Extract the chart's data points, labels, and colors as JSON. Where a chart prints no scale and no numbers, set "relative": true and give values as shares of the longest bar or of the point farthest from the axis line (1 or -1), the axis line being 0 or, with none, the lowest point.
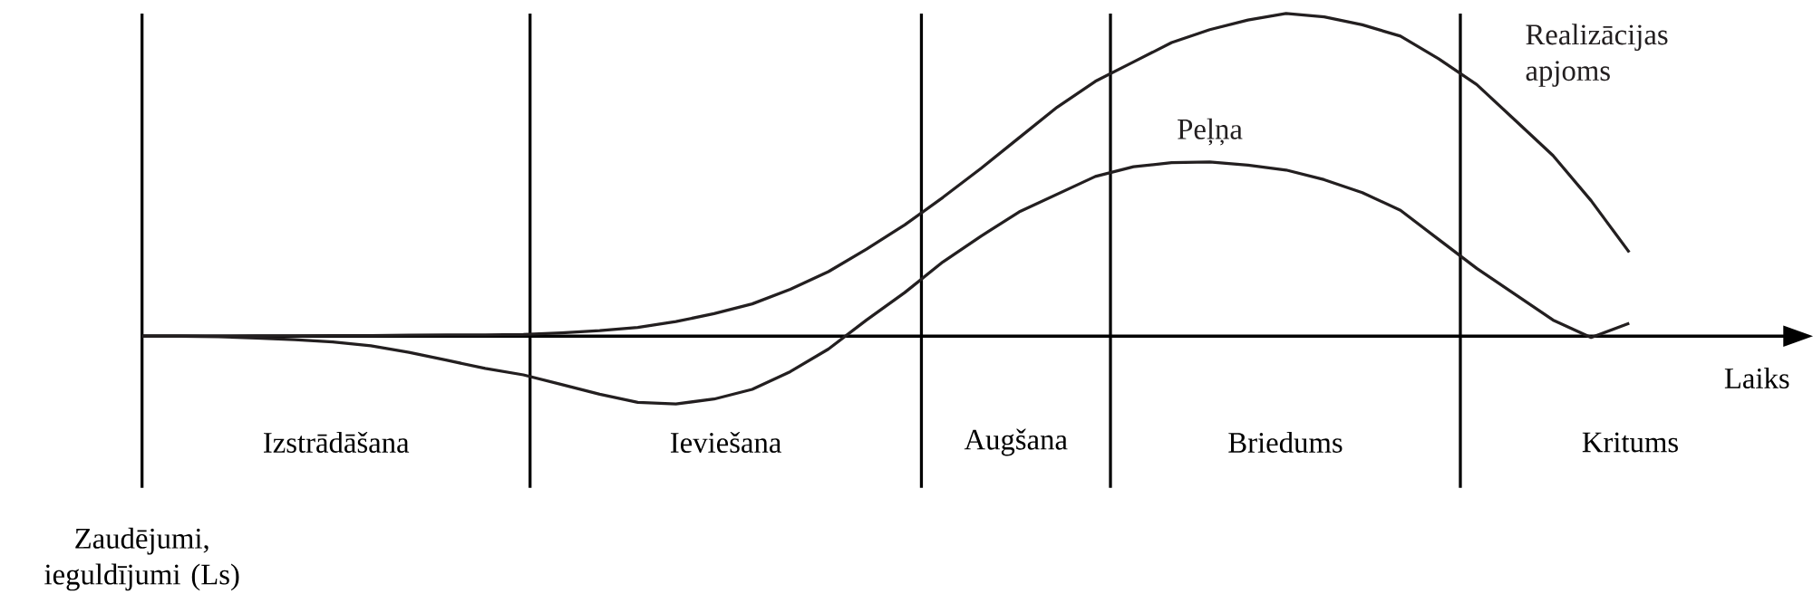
{
  "chart_data": {
    "type": "line",
    "relative": true,
    "xlabel": "Laiks",
    "ylabel": "Zaudējumi, ieguldījumi (Ls)",
    "categories": [
      null,
      null,
      null,
      null,
      null,
      null,
      null,
      null,
      null,
      null,
      null,
      null,
      null,
      null,
      null,
      null,
      null,
      null,
      null,
      null,
      null,
      null,
      null,
      null,
      null,
      null,
      null,
      null,
      null,
      null,
      null,
      null,
      null,
      null,
      null,
      null,
      null,
      null,
      null,
      null
    ],
    "series": [
      {
        "name": "Realizācijas apjoms",
        "color": "#231f20",
        "values": [
          0,
          0,
          0,
          0.001,
          0.001,
          0.002,
          0.002,
          0.003,
          0.004,
          0.004,
          0.005,
          0.01,
          0.017,
          0.027,
          0.045,
          0.07,
          0.1,
          0.145,
          0.2,
          0.27,
          0.345,
          0.43,
          0.52,
          0.615,
          0.71,
          0.79,
          0.85,
          0.91,
          0.95,
          0.98,
          1.0,
          0.99,
          0.965,
          0.93,
          0.86,
          0.78,
          0.67,
          0.56,
          0.42,
          0.26
        ]
      },
      {
        "name": "Peļņa",
        "color": "#231f20",
        "values": [
          0,
          0,
          -0.002,
          -0.006,
          -0.011,
          -0.018,
          -0.03,
          -0.05,
          -0.075,
          -0.1,
          -0.12,
          -0.15,
          -0.18,
          -0.205,
          -0.21,
          -0.195,
          -0.165,
          -0.11,
          -0.04,
          0.05,
          0.135,
          0.23,
          0.31,
          0.385,
          0.44,
          0.495,
          0.525,
          0.538,
          0.54,
          0.53,
          0.515,
          0.485,
          0.445,
          0.39,
          0.3,
          0.21,
          0.13,
          0.05,
          -0.004,
          0.04
        ]
      }
    ],
    "annotations": [
      "Izstrādāšana",
      "Ieviešana",
      "Augšana",
      "Briedums",
      "Kritums"
    ]
  }
}
